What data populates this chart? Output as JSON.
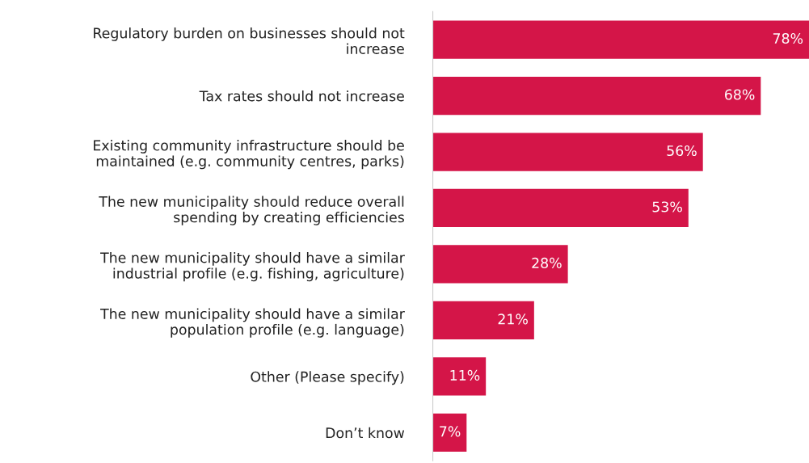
{
  "chart_data": {
    "type": "bar",
    "orientation": "horizontal",
    "categories": [
      "Regulatory burden on businesses should not\nincrease",
      "Tax rates should not increase",
      "Existing community infrastructure should be\nmaintained (e.g. community centres, parks)",
      "The new municipality should reduce overall\nspending by creating efficiencies",
      "The new municipality should have a similar\nindustrial profile (e.g. fishing, agriculture)",
      "The new municipality should have a similar\npopulation profile (e.g. language)",
      "Other (Please specify)",
      "Don’t know"
    ],
    "values": [
      78,
      68,
      56,
      53,
      28,
      21,
      11,
      7
    ],
    "value_labels": [
      "78%",
      "68%",
      "56%",
      "53%",
      "28%",
      "21%",
      "11%",
      "7%"
    ],
    "color": "#d41548",
    "tick_labels": "y",
    "grid": false,
    "legend": false
  }
}
